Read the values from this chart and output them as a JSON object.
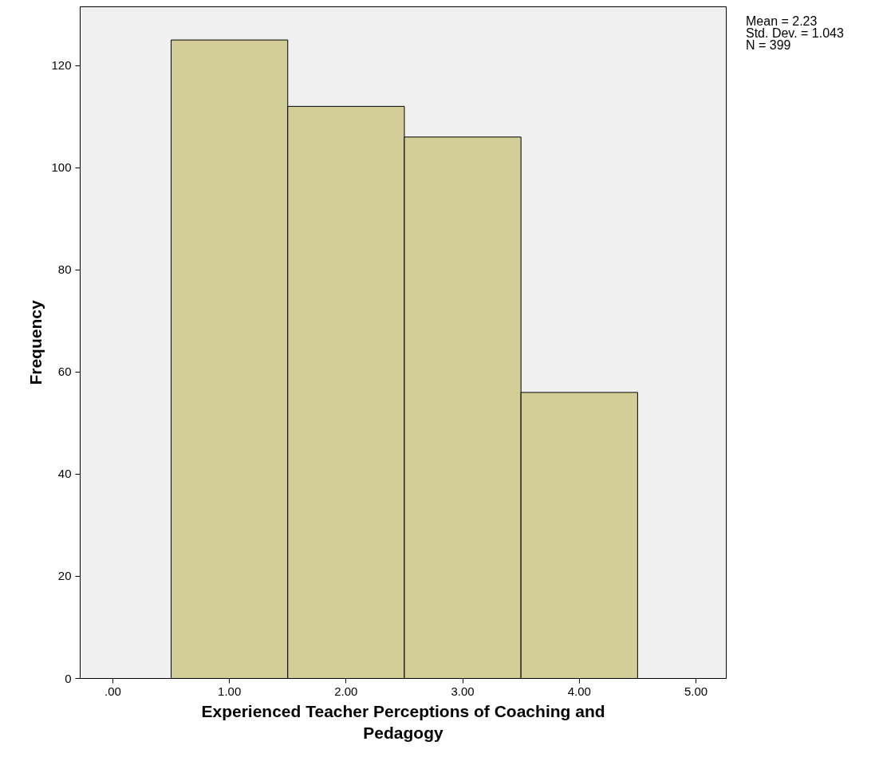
{
  "chart_data": {
    "type": "histogram",
    "xlabel": "Experienced Teacher Perceptions of Coaching and Pedagogy",
    "ylabel": "Frequency",
    "bins": [
      0.5,
      1.5,
      2.5,
      3.5,
      4.5
    ],
    "values": [
      125,
      112,
      106,
      56
    ],
    "color": "#d3ce98",
    "xlim": [
      -0.28,
      5.26
    ],
    "ylim": [
      0,
      131.5
    ],
    "xticks": [
      {
        "value": 0,
        "label": ".00"
      },
      {
        "value": 1,
        "label": "1.00"
      },
      {
        "value": 2,
        "label": "2.00"
      },
      {
        "value": 3,
        "label": "3.00"
      },
      {
        "value": 4,
        "label": "4.00"
      },
      {
        "value": 5,
        "label": "5.00"
      }
    ],
    "yticks": [
      0,
      20,
      40,
      60,
      80,
      100,
      120
    ],
    "grid": false,
    "annotations": [
      "Mean = 2.23",
      "Std. Dev. = 1.043",
      "N = 399"
    ]
  }
}
